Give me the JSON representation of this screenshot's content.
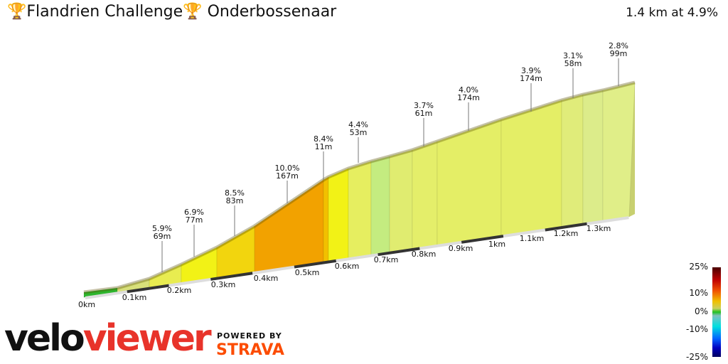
{
  "header": {
    "trophy_icon": "🏆",
    "segment_name_1": "Flandrien Challenge",
    "segment_name_2": " Onderbossenaar",
    "summary": "1.4 km at 4.9%"
  },
  "profile": {
    "segments": [
      {
        "color": "#2db52d"
      },
      {
        "color": "#d8e07a"
      },
      {
        "color": "#e8ec50"
      },
      {
        "color": "#f2f216"
      },
      {
        "color": "#f2d50e"
      },
      {
        "color": "#f2a200"
      },
      {
        "color": "#f2c000"
      },
      {
        "color": "#f2f216"
      },
      {
        "color": "#e6ee60"
      },
      {
        "color": "#c4ec80"
      },
      {
        "color": "#e0ec70"
      },
      {
        "color": "#e4ee6a"
      },
      {
        "color": "#e4ee66"
      },
      {
        "color": "#e4ee66"
      },
      {
        "color": "#e0ec7a"
      },
      {
        "color": "#dcec8a"
      },
      {
        "color": "#e0ee88"
      }
    ],
    "labels": [
      {
        "grade": "5.9%",
        "length": "69m"
      },
      {
        "grade": "6.9%",
        "length": "77m"
      },
      {
        "grade": "8.5%",
        "length": "83m"
      },
      {
        "grade": "10.0%",
        "length": "167m"
      },
      {
        "grade": "8.4%",
        "length": "11m"
      },
      {
        "grade": "4.4%",
        "length": "53m"
      },
      {
        "grade": "3.7%",
        "length": "61m"
      },
      {
        "grade": "4.0%",
        "length": "174m"
      },
      {
        "grade": "3.9%",
        "length": "174m"
      },
      {
        "grade": "3.1%",
        "length": "58m"
      },
      {
        "grade": "2.8%",
        "length": "99m"
      }
    ],
    "distance_ticks": [
      "0km",
      "0.1km",
      "0.2km",
      "0.3km",
      "0.4km",
      "0.5km",
      "0.6km",
      "0.7km",
      "0.8km",
      "0.9km",
      "1km",
      "1.1km",
      "1.2km",
      "1.3km"
    ]
  },
  "legend": {
    "ticks": [
      "25%",
      "10%",
      "0%",
      "-10%",
      "-25%"
    ]
  },
  "branding": {
    "logo_part1": "velo",
    "logo_part2": "viewer",
    "powered_by": "POWERED BY",
    "strava": "STRAVA"
  }
}
